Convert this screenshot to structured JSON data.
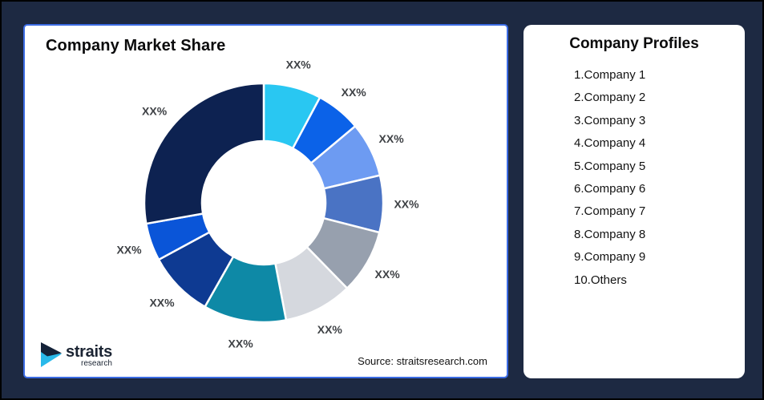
{
  "frame": {
    "background": "#1d2942",
    "border_color": "#000000"
  },
  "market_share_card": {
    "title": "Company Market Share",
    "source_text": "Source: straitsresearch.com",
    "border_color": "#3c6ce4",
    "logo": {
      "name": "straits",
      "sub": "research",
      "navy": "#142238",
      "cyan": "#29b9ea"
    }
  },
  "profiles_card": {
    "title": "Company Profiles",
    "items": [
      "1.Company 1",
      "2.Company 2",
      "3.Company 3",
      "4.Company 4",
      "5.Company 5",
      "6.Company 6",
      "7.Company 7",
      "8.Company 8",
      "9.Company 9",
      "10.Others"
    ]
  },
  "chart_data": {
    "type": "pie",
    "variant": "donut",
    "title": "Company Market Share",
    "start_angle_deg": 0,
    "direction": "clockwise",
    "gap_color": "#ffffff",
    "label_color": "#3f4246",
    "note": "All slice data labels are placeholder text XX%; slice sizes estimated from arc angles",
    "segments": [
      {
        "label": "XX%",
        "est_percent": 7.8,
        "color": "#29c7f2"
      },
      {
        "label": "XX%",
        "est_percent": 6.1,
        "color": "#0b62e8"
      },
      {
        "label": "XX%",
        "est_percent": 7.4,
        "color": "#6d9bf2"
      },
      {
        "label": "XX%",
        "est_percent": 7.7,
        "color": "#4a73c4"
      },
      {
        "label": "XX%",
        "est_percent": 8.7,
        "color": "#97a0ae"
      },
      {
        "label": "XX%",
        "est_percent": 9.3,
        "color": "#d5d8de"
      },
      {
        "label": "XX%",
        "est_percent": 11.2,
        "color": "#0e89a6"
      },
      {
        "label": "XX%",
        "est_percent": 8.9,
        "color": "#0e3a92"
      },
      {
        "label": "XX%",
        "est_percent": 5.1,
        "color": "#0a55d8"
      },
      {
        "label": "XX%",
        "est_percent": 27.8,
        "color": "#0d2251"
      }
    ]
  }
}
